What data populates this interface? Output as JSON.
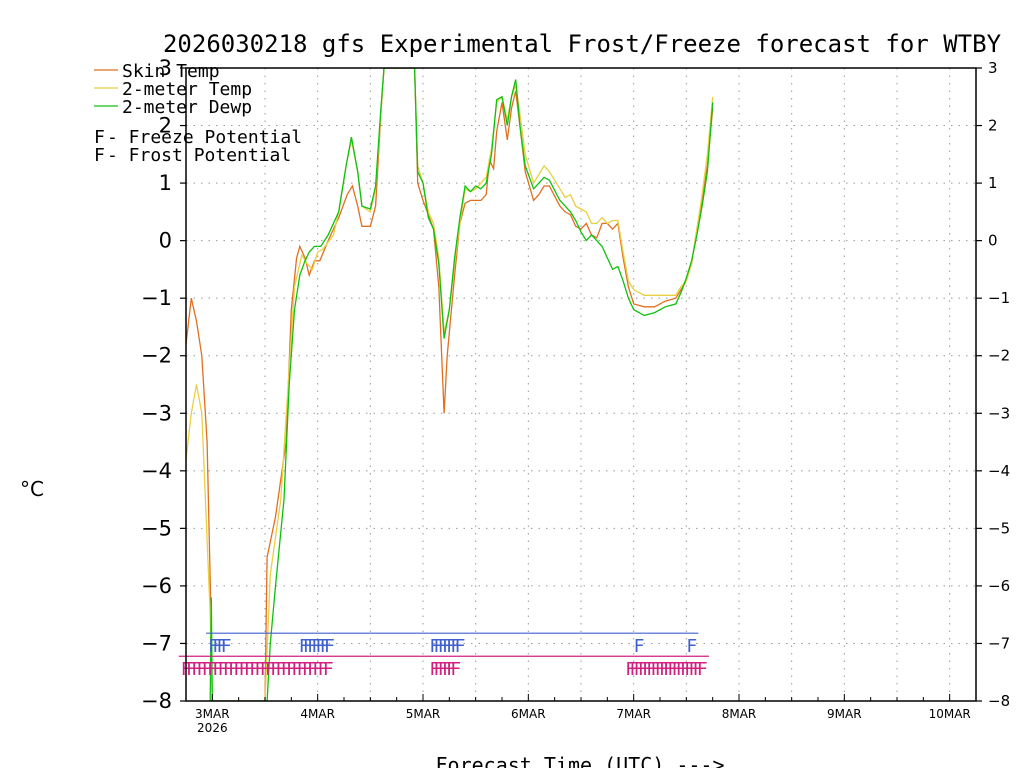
{
  "chart_data": {
    "type": "line",
    "title": "2026030218 gfs Experimental Frost/Freeze forecast for WTBY",
    "xlabel": "Forecast Time (UTC) --->",
    "ylabel": "°C",
    "ylim": [
      -8,
      3
    ],
    "y_ticks": [
      "3",
      "2",
      "1",
      "0",
      "-1",
      "-2",
      "-3",
      "-4",
      "-5",
      "-6",
      "-7",
      "-8"
    ],
    "x_ticks": [
      {
        "label": "3MAR",
        "sub": "2026",
        "day": 3
      },
      {
        "label": "4MAR",
        "sub": "",
        "day": 4
      },
      {
        "label": "5MAR",
        "sub": "",
        "day": 5
      },
      {
        "label": "6MAR",
        "sub": "",
        "day": 6
      },
      {
        "label": "7MAR",
        "sub": "",
        "day": 7
      },
      {
        "label": "8MAR",
        "sub": "",
        "day": 8
      },
      {
        "label": "9MAR",
        "sub": "",
        "day": 9
      },
      {
        "label": "10MAR",
        "sub": "",
        "day": 10
      }
    ],
    "xlim": [
      2.75,
      10.25
    ],
    "grid": true,
    "legend": {
      "position": "top-left",
      "lines": [
        {
          "name": "Skin Temp",
          "color": "#e07020"
        },
        {
          "name": "2-meter Temp",
          "color": "#e8d040"
        },
        {
          "name": "2-meter Dewp",
          "color": "#10c010"
        }
      ],
      "markers": [
        {
          "glyph": "F",
          "text": " - Freeze Potential",
          "color": "#d02080"
        },
        {
          "glyph": "F",
          "text": " - Frost Potential",
          "color": "#4060d0"
        }
      ]
    },
    "series": [
      {
        "name": "Skin Temp",
        "color": "#e07020",
        "points": [
          [
            2.75,
            -1.8
          ],
          [
            2.8,
            -1.0
          ],
          [
            2.85,
            -1.4
          ],
          [
            2.9,
            -2.0
          ],
          [
            2.95,
            -3.5
          ],
          [
            2.98,
            -5.9
          ],
          [
            3.0,
            -8.0
          ],
          [
            3.5,
            -8.0
          ],
          [
            3.52,
            -5.5
          ],
          [
            3.6,
            -4.8
          ],
          [
            3.7,
            -3.5
          ],
          [
            3.75,
            -1.2
          ],
          [
            3.8,
            -0.3
          ],
          [
            3.83,
            -0.1
          ],
          [
            3.88,
            -0.3
          ],
          [
            3.92,
            -0.6
          ],
          [
            3.97,
            -0.35
          ],
          [
            4.02,
            -0.35
          ],
          [
            4.1,
            0.0
          ],
          [
            4.2,
            0.4
          ],
          [
            4.28,
            0.8
          ],
          [
            4.33,
            0.95
          ],
          [
            4.38,
            0.6
          ],
          [
            4.42,
            0.25
          ],
          [
            4.5,
            0.25
          ],
          [
            4.55,
            0.6
          ],
          [
            4.6,
            2.2
          ],
          [
            4.63,
            3.0
          ],
          [
            4.92,
            3.0
          ],
          [
            4.95,
            1.0
          ],
          [
            5.0,
            0.7
          ],
          [
            5.05,
            0.45
          ],
          [
            5.1,
            0.2
          ],
          [
            5.15,
            -0.8
          ],
          [
            5.2,
            -3.0
          ],
          [
            5.23,
            -2.0
          ],
          [
            5.3,
            -0.6
          ],
          [
            5.35,
            0.3
          ],
          [
            5.4,
            0.65
          ],
          [
            5.45,
            0.7
          ],
          [
            5.55,
            0.7
          ],
          [
            5.6,
            0.8
          ],
          [
            5.63,
            1.4
          ],
          [
            5.67,
            1.25
          ],
          [
            5.7,
            1.9
          ],
          [
            5.75,
            2.4
          ],
          [
            5.8,
            1.75
          ],
          [
            5.84,
            2.3
          ],
          [
            5.88,
            2.6
          ],
          [
            5.92,
            2.0
          ],
          [
            5.97,
            1.2
          ],
          [
            6.05,
            0.7
          ],
          [
            6.1,
            0.8
          ],
          [
            6.15,
            0.95
          ],
          [
            6.2,
            0.95
          ],
          [
            6.3,
            0.6
          ],
          [
            6.35,
            0.5
          ],
          [
            6.4,
            0.45
          ],
          [
            6.45,
            0.25
          ],
          [
            6.5,
            0.2
          ],
          [
            6.55,
            0.3
          ],
          [
            6.6,
            0.1
          ],
          [
            6.65,
            0.05
          ],
          [
            6.7,
            0.3
          ],
          [
            6.75,
            0.3
          ],
          [
            6.8,
            0.2
          ],
          [
            6.85,
            0.3
          ],
          [
            6.9,
            -0.3
          ],
          [
            6.95,
            -0.8
          ],
          [
            7.0,
            -1.1
          ],
          [
            7.1,
            -1.15
          ],
          [
            7.2,
            -1.15
          ],
          [
            7.3,
            -1.05
          ],
          [
            7.4,
            -1.0
          ],
          [
            7.45,
            -0.85
          ],
          [
            7.5,
            -0.7
          ],
          [
            7.55,
            -0.4
          ],
          [
            7.6,
            0.2
          ],
          [
            7.65,
            0.7
          ],
          [
            7.7,
            1.3
          ],
          [
            7.75,
            2.3
          ]
        ]
      },
      {
        "name": "2-meter Temp",
        "color": "#e8d040",
        "points": [
          [
            2.75,
            -3.8
          ],
          [
            2.8,
            -3.0
          ],
          [
            2.85,
            -2.5
          ],
          [
            2.9,
            -3.0
          ],
          [
            2.95,
            -5.2
          ],
          [
            2.98,
            -6.5
          ],
          [
            3.0,
            -8.0
          ],
          [
            3.5,
            -8.0
          ],
          [
            3.55,
            -5.8
          ],
          [
            3.65,
            -4.5
          ],
          [
            3.72,
            -2.5
          ],
          [
            3.78,
            -0.8
          ],
          [
            3.85,
            -0.25
          ],
          [
            3.9,
            -0.4
          ],
          [
            3.95,
            -0.5
          ],
          [
            4.0,
            -0.2
          ],
          [
            4.05,
            -0.15
          ],
          [
            4.15,
            0.1
          ],
          [
            4.2,
            0.5
          ],
          [
            4.27,
            1.3
          ],
          [
            4.32,
            1.75
          ],
          [
            4.38,
            1.2
          ],
          [
            4.42,
            0.6
          ],
          [
            4.5,
            0.5
          ],
          [
            4.55,
            0.9
          ],
          [
            4.6,
            2.2
          ],
          [
            4.63,
            3.0
          ],
          [
            4.92,
            3.0
          ],
          [
            4.95,
            1.3
          ],
          [
            5.0,
            1.0
          ],
          [
            5.05,
            0.5
          ],
          [
            5.1,
            0.3
          ],
          [
            5.15,
            -0.3
          ],
          [
            5.2,
            -1.6
          ],
          [
            5.25,
            -1.2
          ],
          [
            5.3,
            -0.4
          ],
          [
            5.35,
            0.3
          ],
          [
            5.4,
            0.9
          ],
          [
            5.45,
            0.85
          ],
          [
            5.5,
            0.9
          ],
          [
            5.6,
            1.1
          ],
          [
            5.65,
            1.6
          ],
          [
            5.7,
            2.4
          ],
          [
            5.75,
            2.5
          ],
          [
            5.8,
            2.1
          ],
          [
            5.84,
            2.5
          ],
          [
            5.88,
            2.7
          ],
          [
            5.92,
            2.2
          ],
          [
            5.97,
            1.5
          ],
          [
            6.05,
            1.0
          ],
          [
            6.1,
            1.15
          ],
          [
            6.15,
            1.3
          ],
          [
            6.2,
            1.2
          ],
          [
            6.3,
            0.9
          ],
          [
            6.35,
            0.75
          ],
          [
            6.4,
            0.8
          ],
          [
            6.45,
            0.6
          ],
          [
            6.5,
            0.55
          ],
          [
            6.55,
            0.5
          ],
          [
            6.6,
            0.3
          ],
          [
            6.65,
            0.3
          ],
          [
            6.7,
            0.4
          ],
          [
            6.75,
            0.3
          ],
          [
            6.8,
            0.35
          ],
          [
            6.85,
            0.35
          ],
          [
            6.9,
            -0.2
          ],
          [
            6.95,
            -0.7
          ],
          [
            7.0,
            -0.85
          ],
          [
            7.1,
            -0.95
          ],
          [
            7.2,
            -0.95
          ],
          [
            7.3,
            -0.95
          ],
          [
            7.4,
            -0.95
          ],
          [
            7.45,
            -0.8
          ],
          [
            7.5,
            -0.7
          ],
          [
            7.55,
            -0.4
          ],
          [
            7.6,
            0.2
          ],
          [
            7.65,
            0.8
          ],
          [
            7.7,
            1.5
          ],
          [
            7.75,
            2.5
          ]
        ]
      },
      {
        "name": "2-meter Dewp",
        "color": "#10c010",
        "points": [
          [
            2.98,
            -8.0
          ],
          [
            2.99,
            -6.2
          ],
          [
            3.0,
            -8.0
          ],
          [
            3.52,
            -8.0
          ],
          [
            3.55,
            -7.0
          ],
          [
            3.6,
            -6.0
          ],
          [
            3.68,
            -4.5
          ],
          [
            3.73,
            -2.5
          ],
          [
            3.78,
            -1.2
          ],
          [
            3.83,
            -0.6
          ],
          [
            3.88,
            -0.35
          ],
          [
            3.92,
            -0.2
          ],
          [
            3.97,
            -0.1
          ],
          [
            4.03,
            -0.1
          ],
          [
            4.1,
            0.1
          ],
          [
            4.2,
            0.5
          ],
          [
            4.27,
            1.3
          ],
          [
            4.32,
            1.8
          ],
          [
            4.38,
            1.2
          ],
          [
            4.42,
            0.6
          ],
          [
            4.5,
            0.55
          ],
          [
            4.55,
            0.95
          ],
          [
            4.6,
            2.3
          ],
          [
            4.63,
            3.0
          ],
          [
            4.92,
            3.0
          ],
          [
            4.95,
            1.2
          ],
          [
            5.0,
            1.0
          ],
          [
            5.05,
            0.4
          ],
          [
            5.1,
            0.2
          ],
          [
            5.15,
            -0.4
          ],
          [
            5.2,
            -1.7
          ],
          [
            5.25,
            -1.2
          ],
          [
            5.3,
            -0.3
          ],
          [
            5.35,
            0.4
          ],
          [
            5.4,
            0.95
          ],
          [
            5.45,
            0.85
          ],
          [
            5.5,
            0.95
          ],
          [
            5.55,
            0.9
          ],
          [
            5.6,
            1.0
          ],
          [
            5.65,
            1.5
          ],
          [
            5.7,
            2.45
          ],
          [
            5.75,
            2.5
          ],
          [
            5.8,
            2.0
          ],
          [
            5.84,
            2.5
          ],
          [
            5.88,
            2.8
          ],
          [
            5.92,
            2.0
          ],
          [
            5.97,
            1.3
          ],
          [
            6.05,
            0.9
          ],
          [
            6.1,
            1.0
          ],
          [
            6.15,
            1.1
          ],
          [
            6.2,
            1.05
          ],
          [
            6.3,
            0.7
          ],
          [
            6.35,
            0.6
          ],
          [
            6.4,
            0.5
          ],
          [
            6.45,
            0.35
          ],
          [
            6.5,
            0.15
          ],
          [
            6.55,
            0.0
          ],
          [
            6.6,
            0.1
          ],
          [
            6.7,
            -0.1
          ],
          [
            6.75,
            -0.3
          ],
          [
            6.8,
            -0.5
          ],
          [
            6.85,
            -0.45
          ],
          [
            6.9,
            -0.7
          ],
          [
            6.95,
            -1.0
          ],
          [
            7.0,
            -1.2
          ],
          [
            7.1,
            -1.3
          ],
          [
            7.2,
            -1.25
          ],
          [
            7.3,
            -1.15
          ],
          [
            7.4,
            -1.1
          ],
          [
            7.45,
            -0.9
          ],
          [
            7.5,
            -0.65
          ],
          [
            7.55,
            -0.35
          ],
          [
            7.6,
            0.1
          ],
          [
            7.65,
            0.6
          ],
          [
            7.7,
            1.2
          ],
          [
            7.75,
            2.4
          ]
        ]
      }
    ],
    "frost_marks": {
      "glyph": "F",
      "color": "#4060d0",
      "level": -7.1,
      "times": [
        2.96,
        3.0,
        3.04,
        3.08,
        3.82,
        3.86,
        3.9,
        3.94,
        3.98,
        4.02,
        4.06,
        5.06,
        5.1,
        5.14,
        5.18,
        5.22,
        5.26,
        5.3,
        7.0,
        7.5
      ]
    },
    "freeze_marks": {
      "glyph": "F",
      "color": "#d02080",
      "level": -7.5,
      "times": [
        2.7,
        2.75,
        2.8,
        2.85,
        2.9,
        2.95,
        3.0,
        3.05,
        3.1,
        3.15,
        3.2,
        3.25,
        3.3,
        3.35,
        3.4,
        3.45,
        3.5,
        3.55,
        3.6,
        3.65,
        3.7,
        3.75,
        3.8,
        3.85,
        3.9,
        3.95,
        4.0,
        4.05,
        5.06,
        5.1,
        5.14,
        5.18,
        5.22,
        5.26,
        6.92,
        6.96,
        7.0,
        7.04,
        7.08,
        7.12,
        7.16,
        7.2,
        7.24,
        7.28,
        7.32,
        7.36,
        7.4,
        7.44,
        7.48,
        7.52,
        7.56,
        7.6
      ]
    }
  }
}
